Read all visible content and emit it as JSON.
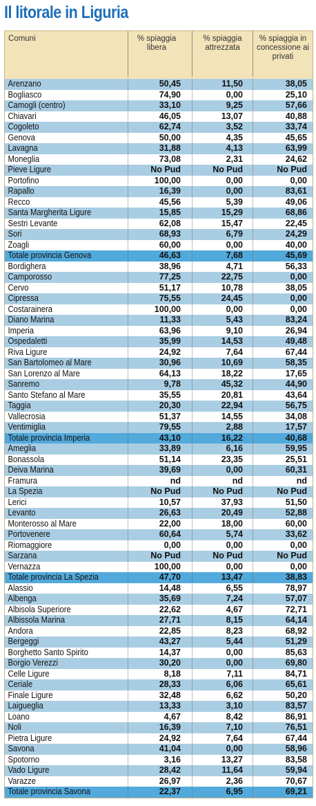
{
  "title": "Il litorale in Liguria",
  "header": {
    "comuni": "Comuni",
    "libera": "% spiaggia libera",
    "attrezzata": "% spiaggia attrezzata",
    "concessione": "% spiaggia in concessione ai privati"
  },
  "colors": {
    "title": "#1d6fb8",
    "header_bg": "#f3e3b9",
    "stripe": "#a9cde3",
    "total": "#52a9db"
  },
  "rows": [
    {
      "name": "Arenzano",
      "libera": "50,45",
      "attrezzata": "11,50",
      "concessione": "38,05"
    },
    {
      "name": "Bogliasco",
      "libera": "74,90",
      "attrezzata": "0,00",
      "concessione": "25,10"
    },
    {
      "name": "Camogli (centro)",
      "libera": "33,10",
      "attrezzata": "9,25",
      "concessione": "57,66"
    },
    {
      "name": "Chiavari",
      "libera": "46,05",
      "attrezzata": "13,07",
      "concessione": "40,88"
    },
    {
      "name": "Cogoleto",
      "libera": "62,74",
      "attrezzata": "3,52",
      "concessione": "33,74"
    },
    {
      "name": "Genova",
      "libera": "50,00",
      "attrezzata": "4,35",
      "concessione": "45,65"
    },
    {
      "name": "Lavagna",
      "libera": "31,88",
      "attrezzata": "4,13",
      "concessione": "63,99"
    },
    {
      "name": "Moneglia",
      "libera": "73,08",
      "attrezzata": "2,31",
      "concessione": "24,62"
    },
    {
      "name": "Pieve Ligure",
      "libera": "No Pud",
      "attrezzata": "No Pud",
      "concessione": "No Pud"
    },
    {
      "name": "Portofino",
      "libera": "100,00",
      "attrezzata": "0,00",
      "concessione": "0,00"
    },
    {
      "name": "Rapallo",
      "libera": "16,39",
      "attrezzata": "0,00",
      "concessione": "83,61"
    },
    {
      "name": "Recco",
      "libera": "45,56",
      "attrezzata": "5,39",
      "concessione": "49,06"
    },
    {
      "name": "Santa Margherita Ligure",
      "libera": "15,85",
      "attrezzata": "15,29",
      "concessione": "68,86"
    },
    {
      "name": "Sestri Levante",
      "libera": "62,08",
      "attrezzata": "15,47",
      "concessione": "22,45"
    },
    {
      "name": "Sori",
      "libera": "68,93",
      "attrezzata": "6,79",
      "concessione": "24,29"
    },
    {
      "name": "Zoagli",
      "libera": "60,00",
      "attrezzata": "0,00",
      "concessione": "40,00"
    },
    {
      "name": "Totale provincia Genova",
      "libera": "46,63",
      "attrezzata": "7,68",
      "concessione": "45,69",
      "total": true
    },
    {
      "name": "Bordighera",
      "libera": "38,96",
      "attrezzata": "4,71",
      "concessione": "56,33"
    },
    {
      "name": "Camporosso",
      "libera": "77,25",
      "attrezzata": "22,75",
      "concessione": "0,00"
    },
    {
      "name": "Cervo",
      "libera": "51,17",
      "attrezzata": "10,78",
      "concessione": "38,05"
    },
    {
      "name": "Cipressa",
      "libera": "75,55",
      "attrezzata": "24,45",
      "concessione": "0,00"
    },
    {
      "name": "Costarainera",
      "libera": "100,00",
      "attrezzata": "0,00",
      "concessione": "0,00"
    },
    {
      "name": "Diano Marina",
      "libera": "11,33",
      "attrezzata": "5,43",
      "concessione": "83,24"
    },
    {
      "name": "Imperia",
      "libera": "63,96",
      "attrezzata": "9,10",
      "concessione": "26,94"
    },
    {
      "name": "Ospedaletti",
      "libera": "35,99",
      "attrezzata": "14,53",
      "concessione": "49,48"
    },
    {
      "name": "Riva Ligure",
      "libera": "24,92",
      "attrezzata": "7,64",
      "concessione": "67,44"
    },
    {
      "name": "San Bartolomeo al Mare",
      "libera": "30,96",
      "attrezzata": "10,69",
      "concessione": "58,35"
    },
    {
      "name": "San Lorenzo al Mare",
      "libera": "64,13",
      "attrezzata": "18,22",
      "concessione": "17,65"
    },
    {
      "name": "Sanremo",
      "libera": "9,78",
      "attrezzata": "45,32",
      "concessione": "44,90"
    },
    {
      "name": "Santo Stefano al Mare",
      "libera": "35,55",
      "attrezzata": "20,81",
      "concessione": "43,64"
    },
    {
      "name": "Taggia",
      "libera": "20,30",
      "attrezzata": "22,94",
      "concessione": "56,75"
    },
    {
      "name": "Vallecrosia",
      "libera": "51,37",
      "attrezzata": "14,55",
      "concessione": "34,08"
    },
    {
      "name": "Ventimiglia",
      "libera": "79,55",
      "attrezzata": "2,88",
      "concessione": "17,57"
    },
    {
      "name": "Totale provincia Imperia",
      "libera": "43,10",
      "attrezzata": "16,22",
      "concessione": "40,68",
      "total": true
    },
    {
      "name": "Ameglia",
      "libera": "33,89",
      "attrezzata": "6,16",
      "concessione": "59,95"
    },
    {
      "name": "Bonassola",
      "libera": "51,14",
      "attrezzata": "23,35",
      "concessione": "25,51"
    },
    {
      "name": "Deiva Marina",
      "libera": "39,69",
      "attrezzata": "0,00",
      "concessione": "60,31"
    },
    {
      "name": "Framura",
      "libera": "nd",
      "attrezzata": "nd",
      "concessione": "nd"
    },
    {
      "name": "La Spezia",
      "libera": "No Pud",
      "attrezzata": "No Pud",
      "concessione": "No Pud"
    },
    {
      "name": "Lerici",
      "libera": "10,57",
      "attrezzata": "37,93",
      "concessione": "51,50"
    },
    {
      "name": "Levanto",
      "libera": "26,63",
      "attrezzata": "20,49",
      "concessione": "52,88"
    },
    {
      "name": "Monterosso al Mare",
      "libera": "22,00",
      "attrezzata": "18,00",
      "concessione": "60,00"
    },
    {
      "name": "Portovenere",
      "libera": "60,64",
      "attrezzata": "5,74",
      "concessione": "33,62"
    },
    {
      "name": "Riomaggiore",
      "libera": "0,00",
      "attrezzata": "0,00",
      "concessione": "0,00"
    },
    {
      "name": "Sarzana",
      "libera": "No Pud",
      "attrezzata": "No Pud",
      "concessione": "No Pud"
    },
    {
      "name": "Vernazza",
      "libera": "100,00",
      "attrezzata": "0,00",
      "concessione": "0,00"
    },
    {
      "name": "Totale provincia La Spezia",
      "libera": "47,70",
      "attrezzata": "13,47",
      "concessione": "38,83",
      "total": true
    },
    {
      "name": "Alassio",
      "libera": "14,48",
      "attrezzata": "6,55",
      "concessione": "78,97"
    },
    {
      "name": "Albenga",
      "libera": "35,69",
      "attrezzata": "7,24",
      "concessione": "57,07"
    },
    {
      "name": "Albisola Superiore",
      "libera": "22,62",
      "attrezzata": "4,67",
      "concessione": "72,71"
    },
    {
      "name": "Albissola Marina",
      "libera": "27,71",
      "attrezzata": "8,15",
      "concessione": "64,14"
    },
    {
      "name": "Andora",
      "libera": "22,85",
      "attrezzata": "8,23",
      "concessione": "68,92"
    },
    {
      "name": "Bergeggi",
      "libera": "43,27",
      "attrezzata": "5,44",
      "concessione": "51,29"
    },
    {
      "name": "Borghetto Santo Spirito",
      "libera": "14,37",
      "attrezzata": "0,00",
      "concessione": "85,63"
    },
    {
      "name": "Borgio Verezzi",
      "libera": "30,20",
      "attrezzata": "0,00",
      "concessione": "69,80"
    },
    {
      "name": "Celle Ligure",
      "libera": "8,18",
      "attrezzata": "7,11",
      "concessione": "84,71"
    },
    {
      "name": "Ceriale",
      "libera": "28,33",
      "attrezzata": "6,06",
      "concessione": "65,61"
    },
    {
      "name": "Finale Ligure",
      "libera": "32,48",
      "attrezzata": "6,62",
      "concessione": "50,20"
    },
    {
      "name": "Laigueglia",
      "libera": "13,33",
      "attrezzata": "3,10",
      "concessione": "83,57"
    },
    {
      "name": "Loano",
      "libera": "4,67",
      "attrezzata": "8,42",
      "concessione": "86,91"
    },
    {
      "name": "Noli",
      "libera": "16,39",
      "attrezzata": "7,10",
      "concessione": "76,51"
    },
    {
      "name": "Pietra Ligure",
      "libera": "24,92",
      "attrezzata": "7,64",
      "concessione": "67,44"
    },
    {
      "name": "Savona",
      "libera": "41,04",
      "attrezzata": "0,00",
      "concessione": "58,96"
    },
    {
      "name": "Spotorno",
      "libera": "3,16",
      "attrezzata": "13,27",
      "concessione": "83,58"
    },
    {
      "name": "Vado Ligure",
      "libera": "28,42",
      "attrezzata": "11,64",
      "concessione": "59,94"
    },
    {
      "name": "Varazze",
      "libera": "26,97",
      "attrezzata": "2,36",
      "concessione": "70,67"
    },
    {
      "name": "Totale provincia Savona",
      "libera": "22,37",
      "attrezzata": "6,95",
      "concessione": "69,21",
      "total": true
    }
  ]
}
